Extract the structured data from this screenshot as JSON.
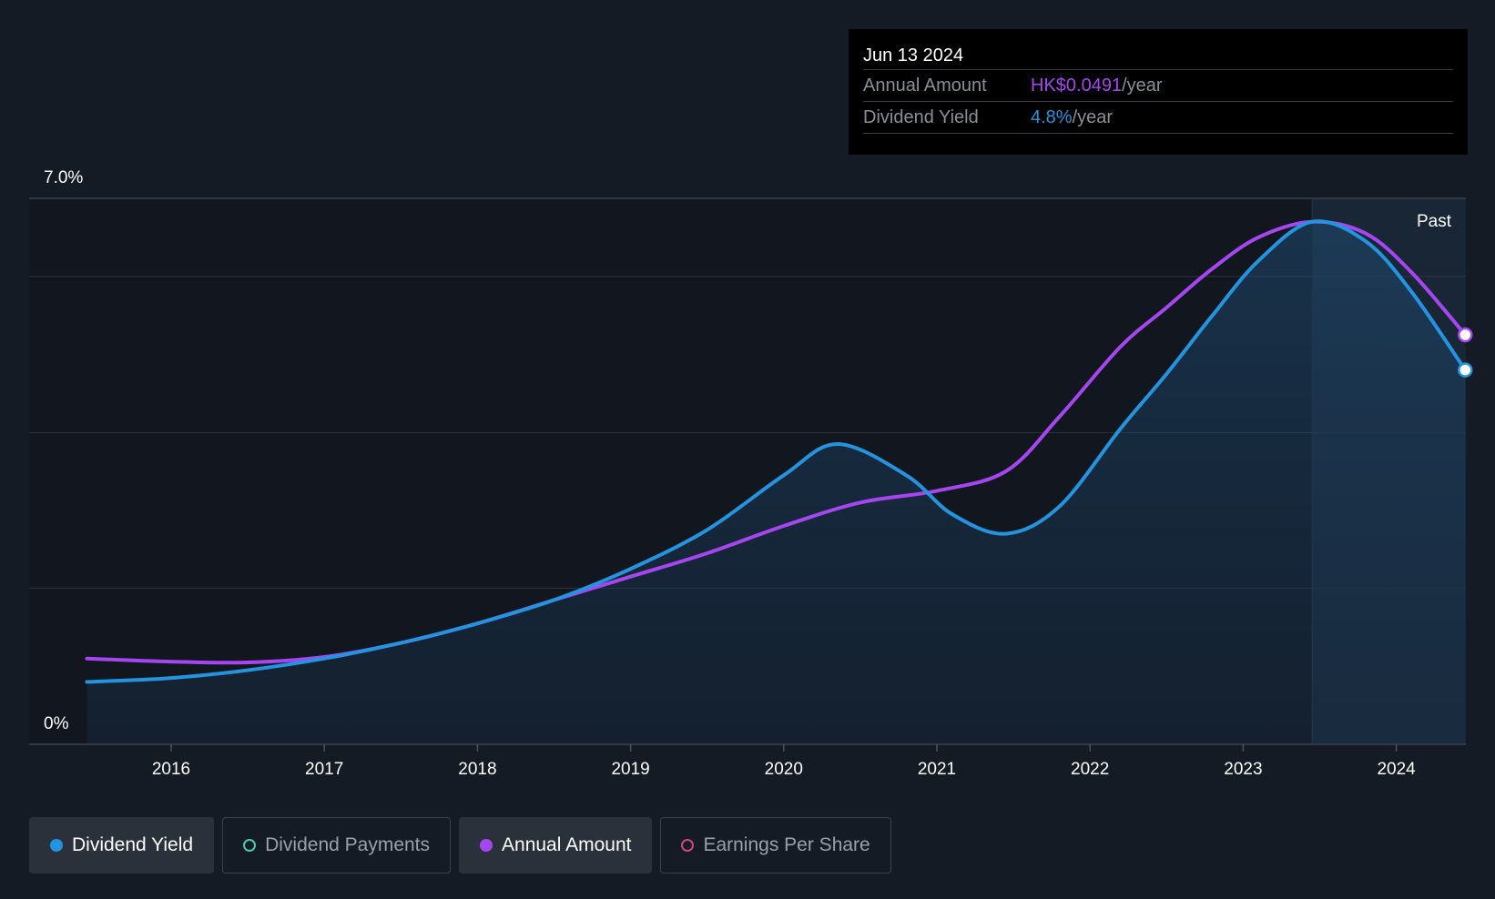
{
  "colors": {
    "background": "#151b25",
    "dividend_yield": "#2394df",
    "annual_amount": "#a646f0",
    "dividend_payments": "#4cc9b0",
    "earnings_per_share": "#d0467e",
    "grid": "#2c333d"
  },
  "tooltip": {
    "date": "Jun 13 2024",
    "annual_label": "Annual Amount",
    "annual_value": "HK$0.0491",
    "annual_unit": "/year",
    "yield_label": "Dividend Yield",
    "yield_value": "4.8%",
    "yield_unit": "/year"
  },
  "legend": [
    {
      "label": "Dividend Yield",
      "active": true,
      "filled": true,
      "color": "#2394df"
    },
    {
      "label": "Dividend Payments",
      "active": false,
      "filled": false,
      "color": "#4cc9b0"
    },
    {
      "label": "Annual Amount",
      "active": true,
      "filled": true,
      "color": "#a646f0"
    },
    {
      "label": "Earnings Per Share",
      "active": false,
      "filled": false,
      "color": "#d0467e"
    }
  ],
  "chart_data": {
    "type": "line",
    "title": "",
    "xlabel": "",
    "ylabel": "",
    "xlim": [
      2015.0,
      2024.45
    ],
    "ylim": [
      0,
      7.0
    ],
    "y_tick_labels": [
      "0%",
      "7.0%"
    ],
    "x_ticks": [
      2016,
      2017,
      2018,
      2019,
      2020,
      2021,
      2022,
      2023,
      2024
    ],
    "past_label": "Past",
    "past_region_start": 2023.45,
    "series": [
      {
        "name": "Dividend Yield",
        "color": "#2394df",
        "filled": true,
        "x": [
          2015.45,
          2016.0,
          2016.5,
          2017.0,
          2017.5,
          2018.0,
          2018.5,
          2019.0,
          2019.5,
          2020.0,
          2020.35,
          2020.8,
          2021.1,
          2021.45,
          2021.8,
          2022.2,
          2022.5,
          2022.8,
          2023.1,
          2023.45,
          2023.8,
          2024.1,
          2024.45
        ],
        "y": [
          0.8,
          0.85,
          0.95,
          1.1,
          1.3,
          1.55,
          1.85,
          2.25,
          2.75,
          3.45,
          3.85,
          3.45,
          2.95,
          2.7,
          3.05,
          4.05,
          4.75,
          5.5,
          6.2,
          6.7,
          6.45,
          5.8,
          4.8
        ]
      },
      {
        "name": "Annual Amount",
        "color": "#a646f0",
        "filled": false,
        "x": [
          2015.45,
          2016.0,
          2016.5,
          2017.0,
          2017.5,
          2018.0,
          2018.5,
          2019.0,
          2019.5,
          2020.0,
          2020.5,
          2021.0,
          2021.45,
          2021.8,
          2022.2,
          2022.5,
          2022.8,
          2023.1,
          2023.45,
          2023.8,
          2024.1,
          2024.45
        ],
        "y": [
          1.1,
          1.06,
          1.05,
          1.12,
          1.3,
          1.55,
          1.85,
          2.15,
          2.45,
          2.8,
          3.1,
          3.25,
          3.5,
          4.2,
          5.1,
          5.6,
          6.1,
          6.5,
          6.7,
          6.55,
          6.05,
          5.25
        ]
      }
    ]
  }
}
